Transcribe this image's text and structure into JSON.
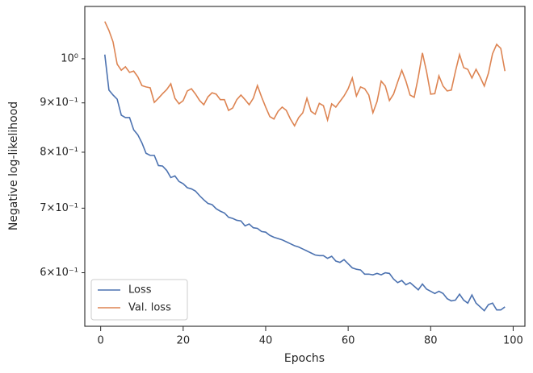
{
  "chart_data": {
    "type": "line",
    "xlabel": "Epochs",
    "ylabel": "Negative log-likelihood",
    "x": [
      1,
      2,
      3,
      4,
      5,
      6,
      7,
      8,
      9,
      10,
      11,
      12,
      13,
      14,
      15,
      16,
      17,
      18,
      19,
      20,
      21,
      22,
      23,
      24,
      25,
      26,
      27,
      28,
      29,
      30,
      31,
      32,
      33,
      34,
      35,
      36,
      37,
      38,
      39,
      40,
      41,
      42,
      43,
      44,
      45,
      46,
      47,
      48,
      49,
      50,
      51,
      52,
      53,
      54,
      55,
      56,
      57,
      58,
      59,
      60,
      61,
      62,
      63,
      64,
      65,
      66,
      67,
      68,
      69,
      70,
      71,
      72,
      73,
      74,
      75,
      76,
      77,
      78,
      79,
      80,
      81,
      82,
      83,
      84,
      85,
      86,
      87,
      88,
      89,
      90,
      91,
      92,
      93,
      94,
      95,
      96,
      97,
      98
    ],
    "series": [
      {
        "name": "Loss",
        "color": "#4c72b0",
        "values": [
          1.01,
          0.928,
          0.917,
          0.908,
          0.874,
          0.869,
          0.869,
          0.844,
          0.834,
          0.818,
          0.798,
          0.794,
          0.794,
          0.775,
          0.774,
          0.766,
          0.753,
          0.756,
          0.746,
          0.742,
          0.735,
          0.733,
          0.729,
          0.721,
          0.714,
          0.708,
          0.706,
          0.699,
          0.695,
          0.692,
          0.685,
          0.683,
          0.68,
          0.679,
          0.671,
          0.674,
          0.668,
          0.667,
          0.662,
          0.661,
          0.656,
          0.653,
          0.651,
          0.649,
          0.646,
          0.643,
          0.64,
          0.638,
          0.635,
          0.632,
          0.629,
          0.626,
          0.625,
          0.625,
          0.621,
          0.624,
          0.617,
          0.615,
          0.619,
          0.613,
          0.607,
          0.605,
          0.604,
          0.598,
          0.598,
          0.597,
          0.599,
          0.597,
          0.6,
          0.599,
          0.591,
          0.586,
          0.589,
          0.583,
          0.586,
          0.581,
          0.576,
          0.584,
          0.577,
          0.574,
          0.571,
          0.574,
          0.571,
          0.564,
          0.561,
          0.562,
          0.57,
          0.562,
          0.558,
          0.569,
          0.558,
          0.553,
          0.548,
          0.556,
          0.558,
          0.549,
          0.549,
          0.553
        ]
      },
      {
        "name": "Val. loss",
        "color": "#dd8452",
        "values": [
          1.093,
          1.07,
          1.041,
          0.987,
          0.973,
          0.981,
          0.968,
          0.971,
          0.958,
          0.938,
          0.935,
          0.933,
          0.901,
          0.91,
          0.92,
          0.929,
          0.942,
          0.91,
          0.898,
          0.905,
          0.926,
          0.931,
          0.919,
          0.905,
          0.896,
          0.913,
          0.922,
          0.919,
          0.907,
          0.907,
          0.884,
          0.889,
          0.907,
          0.917,
          0.907,
          0.896,
          0.91,
          0.938,
          0.913,
          0.891,
          0.871,
          0.866,
          0.882,
          0.891,
          0.884,
          0.866,
          0.852,
          0.869,
          0.879,
          0.91,
          0.882,
          0.876,
          0.899,
          0.894,
          0.864,
          0.898,
          0.891,
          0.903,
          0.915,
          0.931,
          0.955,
          0.915,
          0.935,
          0.931,
          0.917,
          0.879,
          0.903,
          0.948,
          0.937,
          0.905,
          0.919,
          0.946,
          0.973,
          0.948,
          0.917,
          0.912,
          0.957,
          1.014,
          0.97,
          0.919,
          0.92,
          0.96,
          0.937,
          0.926,
          0.928,
          0.97,
          1.01,
          0.979,
          0.975,
          0.955,
          0.975,
          0.957,
          0.937,
          0.966,
          1.012,
          1.035,
          1.025,
          0.971
        ]
      }
    ],
    "xlim": [
      -3.85,
      102.85
    ],
    "xticks": [
      0,
      20,
      40,
      60,
      80,
      100
    ],
    "ylim": [
      0.528,
      1.133
    ],
    "yscale": "log",
    "yticks": [
      {
        "value": 0.6,
        "label": "6×10⁻¹"
      },
      {
        "value": 0.7,
        "label": "7×10⁻¹"
      },
      {
        "value": 0.8,
        "label": "8×10⁻¹"
      },
      {
        "value": 0.9,
        "label": "9×10⁻¹"
      },
      {
        "value": 1,
        "label": "10⁰"
      }
    ],
    "grid": false,
    "legend": "lower left"
  }
}
